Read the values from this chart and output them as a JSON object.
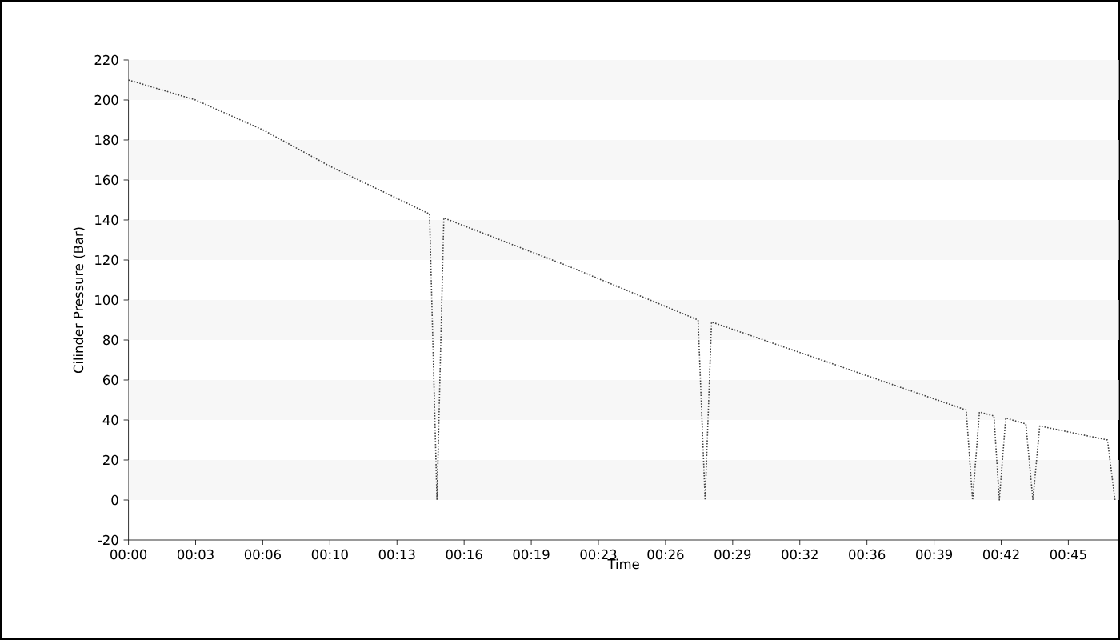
{
  "chart_data": {
    "type": "line",
    "xlabel": "Time",
    "ylabel": "Cilinder Pressure (Bar)",
    "x": [
      0,
      3.24,
      6.5,
      9.7,
      14.53,
      14.89,
      15.22,
      21.45,
      27.49,
      27.83,
      28.14,
      40.43,
      40.74,
      41.07,
      41.77,
      42.03,
      42.34,
      43.31,
      43.65,
      43.98,
      47.25,
      47.61
    ],
    "values": [
      210,
      200,
      185,
      167,
      143,
      0,
      141,
      116,
      90,
      0,
      89,
      45,
      0,
      44,
      42,
      0,
      41,
      38,
      0,
      37,
      30,
      0
    ],
    "color": "#404040",
    "line_style": "dotted",
    "xlim": [
      0,
      47.8
    ],
    "xticks": [
      {
        "value": 0,
        "label": "00:00"
      },
      {
        "value": 3.24,
        "label": "00:03"
      },
      {
        "value": 6.48,
        "label": "00:06"
      },
      {
        "value": 9.72,
        "label": "00:10"
      },
      {
        "value": 12.96,
        "label": "00:13"
      },
      {
        "value": 16.2,
        "label": "00:16"
      },
      {
        "value": 19.44,
        "label": "00:19"
      },
      {
        "value": 22.68,
        "label": "00:23"
      },
      {
        "value": 25.92,
        "label": "00:26"
      },
      {
        "value": 29.16,
        "label": "00:29"
      },
      {
        "value": 32.4,
        "label": "00:32"
      },
      {
        "value": 35.64,
        "label": "00:36"
      },
      {
        "value": 38.88,
        "label": "00:39"
      },
      {
        "value": 42.12,
        "label": "00:42"
      },
      {
        "value": 45.36,
        "label": "00:45"
      }
    ],
    "ylim": [
      -20,
      220
    ],
    "yticks": [
      -20,
      0,
      20,
      40,
      60,
      80,
      100,
      120,
      140,
      160,
      180,
      200,
      220
    ],
    "bands": [
      {
        "axis": "y",
        "from": 0,
        "to": 20,
        "color": "#f7f7f7"
      },
      {
        "axis": "y",
        "from": 40,
        "to": 60,
        "color": "#f7f7f7"
      },
      {
        "axis": "y",
        "from": 80,
        "to": 100,
        "color": "#f7f7f7"
      },
      {
        "axis": "y",
        "from": 120,
        "to": 140,
        "color": "#f7f7f7"
      },
      {
        "axis": "y",
        "from": 160,
        "to": 180,
        "color": "#f7f7f7"
      },
      {
        "axis": "y",
        "from": 200,
        "to": 220,
        "color": "#f7f7f7"
      }
    ]
  }
}
